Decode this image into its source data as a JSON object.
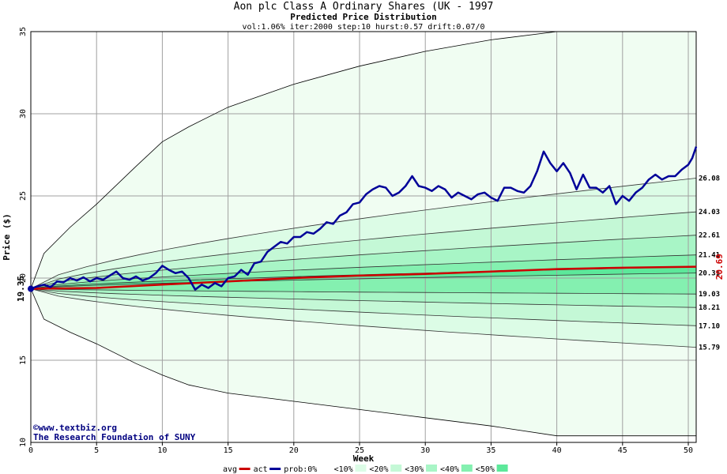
{
  "chart_data": {
    "type": "line",
    "title": "Aon plc Class A Ordinary Shares (UK - 1997",
    "subtitle": "Predicted Price Distribution",
    "params": "vol:1.06% iter:2000 step:10 hurst:0.57 drift:0.07/0",
    "xlabel": "Week",
    "ylabel": "Price ($)",
    "xlim": [
      0,
      50.6
    ],
    "ylim": [
      10,
      35
    ],
    "x_ticks": [
      "0",
      "5",
      "10",
      "15",
      "20",
      "25",
      "30",
      "35",
      "40",
      "45",
      "50"
    ],
    "y_ticks": [
      "10",
      "15",
      "20",
      "25",
      "30",
      "35"
    ],
    "start_label": "19.35",
    "end_value_label": "20.69",
    "right_labels": [
      "26.08",
      "24.03",
      "22.61",
      "21.41",
      "20.31",
      "19.03",
      "18.21",
      "17.10",
      "15.79"
    ],
    "grid": true,
    "outer_envelope": {
      "upper": [
        [
          0,
          19.35
        ],
        [
          1,
          21.5
        ],
        [
          3,
          23.1
        ],
        [
          5,
          24.5
        ],
        [
          8,
          26.8
        ],
        [
          10,
          28.3
        ],
        [
          12,
          29.2
        ],
        [
          15,
          30.4
        ],
        [
          20,
          31.8
        ],
        [
          25,
          32.9
        ],
        [
          30,
          33.8
        ],
        [
          35,
          34.5
        ],
        [
          40,
          35
        ],
        [
          50.6,
          35
        ]
      ],
      "lower": [
        [
          0,
          19.35
        ],
        [
          1,
          17.5
        ],
        [
          3,
          16.7
        ],
        [
          5,
          16.0
        ],
        [
          8,
          14.8
        ],
        [
          10,
          14.1
        ],
        [
          12,
          13.5
        ],
        [
          15,
          13.0
        ],
        [
          20,
          12.5
        ],
        [
          25,
          12.0
        ],
        [
          30,
          11.5
        ],
        [
          35,
          11.0
        ],
        [
          40,
          10.4
        ],
        [
          50.6,
          10.4
        ]
      ]
    },
    "bands": [
      {
        "label": "<10%",
        "color": "#dcfce6",
        "upper": 26.08,
        "lower": 15.79
      },
      {
        "label": "<20%",
        "color": "#c4f8d6",
        "upper": 24.03,
        "lower": 17.1
      },
      {
        "label": "<30%",
        "color": "#a8f5c6",
        "upper": 22.61,
        "lower": 18.21
      },
      {
        "label": "<40%",
        "color": "#84f0b0",
        "upper": 21.41,
        "lower": 19.03
      },
      {
        "label": "<50%",
        "color": "#5ce89a",
        "upper": 20.69,
        "lower": 20.31
      }
    ],
    "series": [
      {
        "name": "avg",
        "color": "#cc0000",
        "points": [
          [
            0,
            19.35
          ],
          [
            5,
            19.4
          ],
          [
            10,
            19.6
          ],
          [
            15,
            19.8
          ],
          [
            20,
            20.0
          ],
          [
            25,
            20.15
          ],
          [
            30,
            20.25
          ],
          [
            35,
            20.4
          ],
          [
            40,
            20.55
          ],
          [
            45,
            20.63
          ],
          [
            50.6,
            20.69
          ]
        ]
      },
      {
        "name": "act",
        "color": "#000099",
        "points": [
          [
            0,
            19.35
          ],
          [
            0.5,
            19.5
          ],
          [
            1,
            19.6
          ],
          [
            1.5,
            19.45
          ],
          [
            2,
            19.8
          ],
          [
            2.5,
            19.75
          ],
          [
            3,
            20.0
          ],
          [
            3.5,
            19.85
          ],
          [
            4,
            20.05
          ],
          [
            4.5,
            19.8
          ],
          [
            5,
            20.0
          ],
          [
            5.5,
            19.9
          ],
          [
            6,
            20.15
          ],
          [
            6.5,
            20.4
          ],
          [
            7,
            20.0
          ],
          [
            7.5,
            19.9
          ],
          [
            8,
            20.1
          ],
          [
            8.5,
            19.85
          ],
          [
            9,
            20.0
          ],
          [
            9.5,
            20.3
          ],
          [
            10,
            20.75
          ],
          [
            10.5,
            20.5
          ],
          [
            11,
            20.3
          ],
          [
            11.5,
            20.4
          ],
          [
            12,
            20.0
          ],
          [
            12.5,
            19.3
          ],
          [
            13,
            19.6
          ],
          [
            13.5,
            19.4
          ],
          [
            14,
            19.7
          ],
          [
            14.5,
            19.5
          ],
          [
            15,
            20.0
          ],
          [
            15.5,
            20.1
          ],
          [
            16,
            20.5
          ],
          [
            16.5,
            20.2
          ],
          [
            17,
            20.9
          ],
          [
            17.5,
            21.0
          ],
          [
            18,
            21.6
          ],
          [
            18.5,
            21.9
          ],
          [
            19,
            22.2
          ],
          [
            19.5,
            22.1
          ],
          [
            20,
            22.5
          ],
          [
            20.5,
            22.5
          ],
          [
            21,
            22.8
          ],
          [
            21.5,
            22.7
          ],
          [
            22,
            23.0
          ],
          [
            22.5,
            23.4
          ],
          [
            23,
            23.3
          ],
          [
            23.5,
            23.8
          ],
          [
            24,
            24.0
          ],
          [
            24.5,
            24.5
          ],
          [
            25,
            24.6
          ],
          [
            25.5,
            25.1
          ],
          [
            26,
            25.4
          ],
          [
            26.5,
            25.6
          ],
          [
            27,
            25.5
          ],
          [
            27.5,
            25.0
          ],
          [
            28,
            25.2
          ],
          [
            28.5,
            25.6
          ],
          [
            29,
            26.2
          ],
          [
            29.5,
            25.6
          ],
          [
            30,
            25.5
          ],
          [
            30.5,
            25.3
          ],
          [
            31,
            25.6
          ],
          [
            31.5,
            25.4
          ],
          [
            32,
            24.9
          ],
          [
            32.5,
            25.2
          ],
          [
            33,
            25.0
          ],
          [
            33.5,
            24.8
          ],
          [
            34,
            25.1
          ],
          [
            34.5,
            25.2
          ],
          [
            35,
            24.9
          ],
          [
            35.5,
            24.7
          ],
          [
            36,
            25.5
          ],
          [
            36.5,
            25.5
          ],
          [
            37,
            25.3
          ],
          [
            37.5,
            25.2
          ],
          [
            38,
            25.6
          ],
          [
            38.5,
            26.5
          ],
          [
            39,
            27.7
          ],
          [
            39.5,
            27.0
          ],
          [
            40,
            26.5
          ],
          [
            40.5,
            27.0
          ],
          [
            41,
            26.4
          ],
          [
            41.5,
            25.4
          ],
          [
            42,
            26.3
          ],
          [
            42.5,
            25.5
          ],
          [
            43,
            25.5
          ],
          [
            43.5,
            25.2
          ],
          [
            44,
            25.6
          ],
          [
            44.5,
            24.5
          ],
          [
            45,
            25.0
          ],
          [
            45.5,
            24.7
          ],
          [
            46,
            25.2
          ],
          [
            46.5,
            25.5
          ],
          [
            47,
            26.0
          ],
          [
            47.5,
            26.3
          ],
          [
            48,
            26.0
          ],
          [
            48.5,
            26.2
          ],
          [
            49,
            26.2
          ],
          [
            49.5,
            26.6
          ],
          [
            50,
            26.9
          ],
          [
            50.3,
            27.3
          ],
          [
            50.6,
            28.0
          ]
        ]
      }
    ],
    "legend": [
      {
        "label": "avg",
        "kind": "line",
        "color": "#cc0000"
      },
      {
        "label": "act",
        "kind": "line",
        "color": "#000099"
      },
      {
        "label": "prob:0%",
        "kind": "swatch",
        "color": "#ffffff"
      },
      {
        "label": "<10%",
        "kind": "swatch",
        "color": "#dcfce6"
      },
      {
        "label": "<20%",
        "kind": "swatch",
        "color": "#c4f8d6"
      },
      {
        "label": "<30%",
        "kind": "swatch",
        "color": "#a8f5c6"
      },
      {
        "label": "<40%",
        "kind": "swatch",
        "color": "#84f0b0"
      },
      {
        "label": "<50%",
        "kind": "swatch",
        "color": "#5ce89a"
      }
    ],
    "credit_lines": [
      "©www.textbiz.org",
      "The Research Foundation of SUNY"
    ],
    "envelope_color": "#f0fdf2",
    "grid_color": "#a0a0a0"
  }
}
